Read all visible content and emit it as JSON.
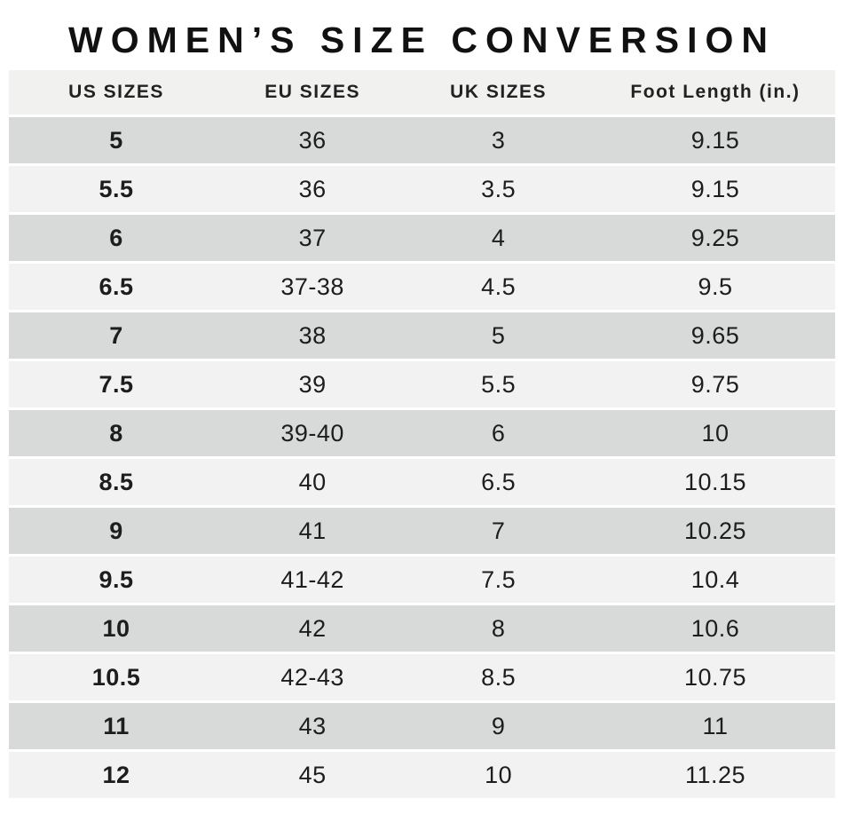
{
  "title": "WOMEN’S SIZE CONVERSION",
  "table": {
    "headers": [
      "US SIZES",
      "EU SIZES",
      "UK SIZES",
      "Foot Length (in.)"
    ],
    "rows": [
      [
        "5",
        "36",
        "3",
        "9.15"
      ],
      [
        "5.5",
        "36",
        "3.5",
        "9.15"
      ],
      [
        "6",
        "37",
        "4",
        "9.25"
      ],
      [
        "6.5",
        "37-38",
        "4.5",
        "9.5"
      ],
      [
        "7",
        "38",
        "5",
        "9.65"
      ],
      [
        "7.5",
        "39",
        "5.5",
        "9.75"
      ],
      [
        "8",
        "39-40",
        "6",
        "10"
      ],
      [
        "8.5",
        "40",
        "6.5",
        "10.15"
      ],
      [
        "9",
        "41",
        "7",
        "10.25"
      ],
      [
        "9.5",
        "41-42",
        "7.5",
        "10.4"
      ],
      [
        "10",
        "42",
        "8",
        "10.6"
      ],
      [
        "10.5",
        "42-43",
        "8.5",
        "10.75"
      ],
      [
        "11",
        "43",
        "9",
        "11"
      ],
      [
        "12",
        "45",
        "10",
        "11.25"
      ]
    ]
  },
  "colors": {
    "row_alt": "#d8d9d9",
    "row_base": "#f2f2f3",
    "header_bg": "#f1f1f0",
    "text": "#1c1c1c"
  }
}
